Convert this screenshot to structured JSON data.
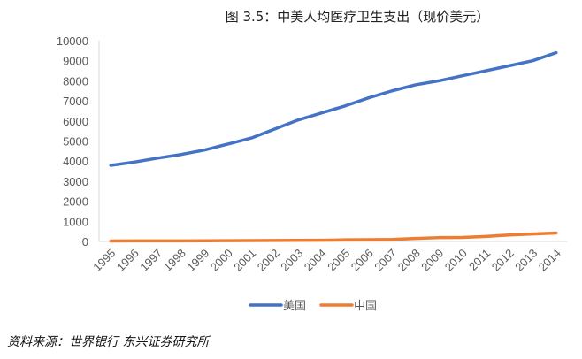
{
  "chart_data": {
    "type": "line",
    "title": "图 3.5：中美人均医疗卫生支出（现价美元）",
    "xlabel": "",
    "ylabel": "",
    "categories": [
      "1995",
      "1996",
      "1997",
      "1998",
      "1999",
      "2000",
      "2001",
      "2002",
      "2003",
      "2004",
      "2005",
      "2006",
      "2007",
      "2008",
      "2009",
      "2010",
      "2011",
      "2012",
      "2013",
      "2014"
    ],
    "ylim": [
      0,
      10000
    ],
    "yticks": [
      0,
      1000,
      2000,
      3000,
      4000,
      5000,
      6000,
      7000,
      8000,
      9000,
      10000
    ],
    "grid": false,
    "legend": "bottom",
    "series": [
      {
        "name": "美国",
        "color": "#4472C4",
        "values": [
          3790,
          3950,
          4150,
          4330,
          4550,
          4850,
          5150,
          5600,
          6050,
          6400,
          6750,
          7150,
          7500,
          7800,
          8000,
          8250,
          8500,
          8750,
          9000,
          9400
        ]
      },
      {
        "name": "中国",
        "color": "#ED7D31",
        "values": [
          20,
          25,
          28,
          30,
          32,
          40,
          45,
          48,
          55,
          60,
          80,
          90,
          100,
          150,
          190,
          200,
          250,
          320,
          370,
          420
        ]
      }
    ]
  },
  "source": "资料来源：世界银行 东兴证券研究所"
}
